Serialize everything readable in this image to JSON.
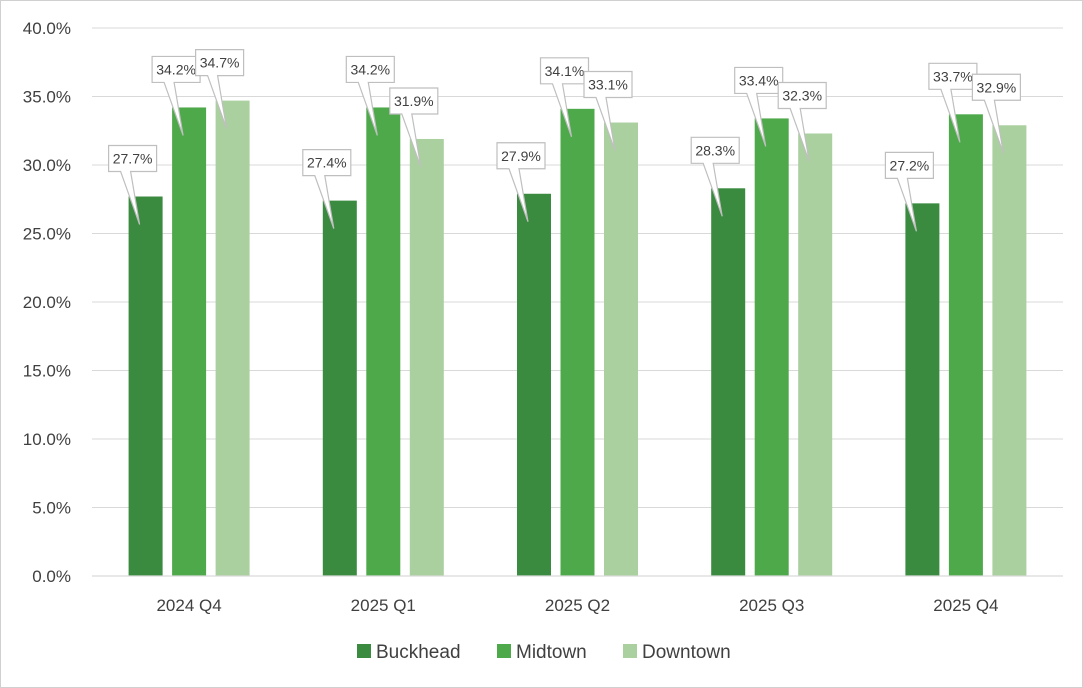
{
  "chart_data": {
    "type": "bar",
    "title": "",
    "xlabel": "",
    "ylabel": "",
    "categories": [
      "2024 Q4",
      "2025 Q1",
      "2025 Q2",
      "2025 Q3",
      "2025 Q4"
    ],
    "series": [
      {
        "name": "Buckhead",
        "color": "#3a8a3f",
        "values": [
          27.7,
          27.4,
          27.9,
          28.3,
          27.2
        ],
        "labels": [
          "27.7%",
          "27.4%",
          "27.9%",
          "28.3%",
          "27.2%"
        ]
      },
      {
        "name": "Midtown",
        "color": "#4ea94b",
        "values": [
          34.2,
          34.2,
          34.1,
          33.4,
          33.7
        ],
        "labels": [
          "34.2%",
          "34.2%",
          "34.1%",
          "33.4%",
          "33.7%"
        ]
      },
      {
        "name": "Downtown",
        "color": "#a9d09e",
        "values": [
          34.7,
          31.9,
          33.1,
          32.3,
          32.9
        ],
        "labels": [
          "34.7%",
          "31.9%",
          "33.1%",
          "32.3%",
          "32.9%"
        ]
      }
    ],
    "ylim": [
      0,
      40
    ],
    "yticks": [
      0,
      5,
      10,
      15,
      20,
      25,
      30,
      35,
      40
    ],
    "ytick_labels": [
      "0.0%",
      "5.0%",
      "10.0%",
      "15.0%",
      "20.0%",
      "25.0%",
      "30.0%",
      "35.0%",
      "40.0%"
    ],
    "grid": true,
    "legend_position": "bottom"
  }
}
